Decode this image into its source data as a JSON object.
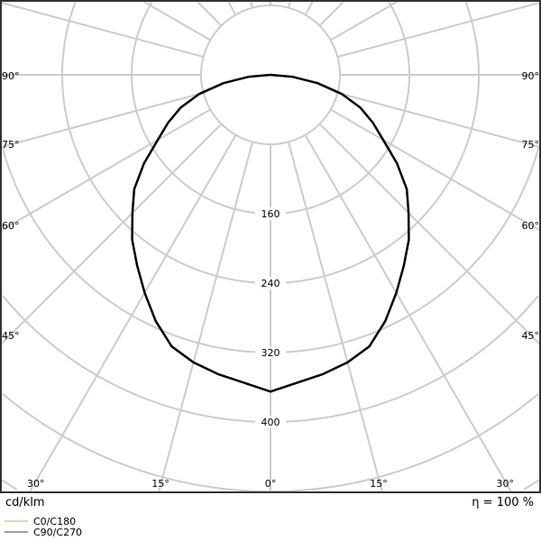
{
  "chart_data": {
    "type": "polar-line",
    "unit_label": "cd/klm",
    "efficiency_label": "η = 100 %",
    "radial_ticks": [
      160,
      240,
      320,
      400
    ],
    "radial_ring_step": 80,
    "angle_labels_left": [
      "90°",
      "75°",
      "60°",
      "45°",
      "30°"
    ],
    "angle_labels_bottom": [
      "30°",
      "15°",
      "0°",
      "15°",
      "30°"
    ],
    "angle_labels_right": [
      "90°",
      "75°",
      "60°",
      "45°",
      "30°"
    ],
    "grid": true,
    "legend_placement": "bottom-left",
    "series": [
      {
        "name": "C0/C180",
        "color": "#f0c080"
      },
      {
        "name": "C90/C270",
        "color": "#808080"
      }
    ],
    "curve_color": "#000000",
    "angles_deg": [
      0,
      10,
      15,
      20,
      25,
      30,
      35,
      40,
      45,
      50,
      55,
      60,
      65,
      70,
      75,
      80,
      85,
      90
    ],
    "intensity_cd_klm": [
      365,
      350,
      343,
      333,
      313,
      290,
      268,
      248,
      225,
      205,
      178,
      150,
      130,
      110,
      85,
      55,
      25,
      0
    ]
  }
}
